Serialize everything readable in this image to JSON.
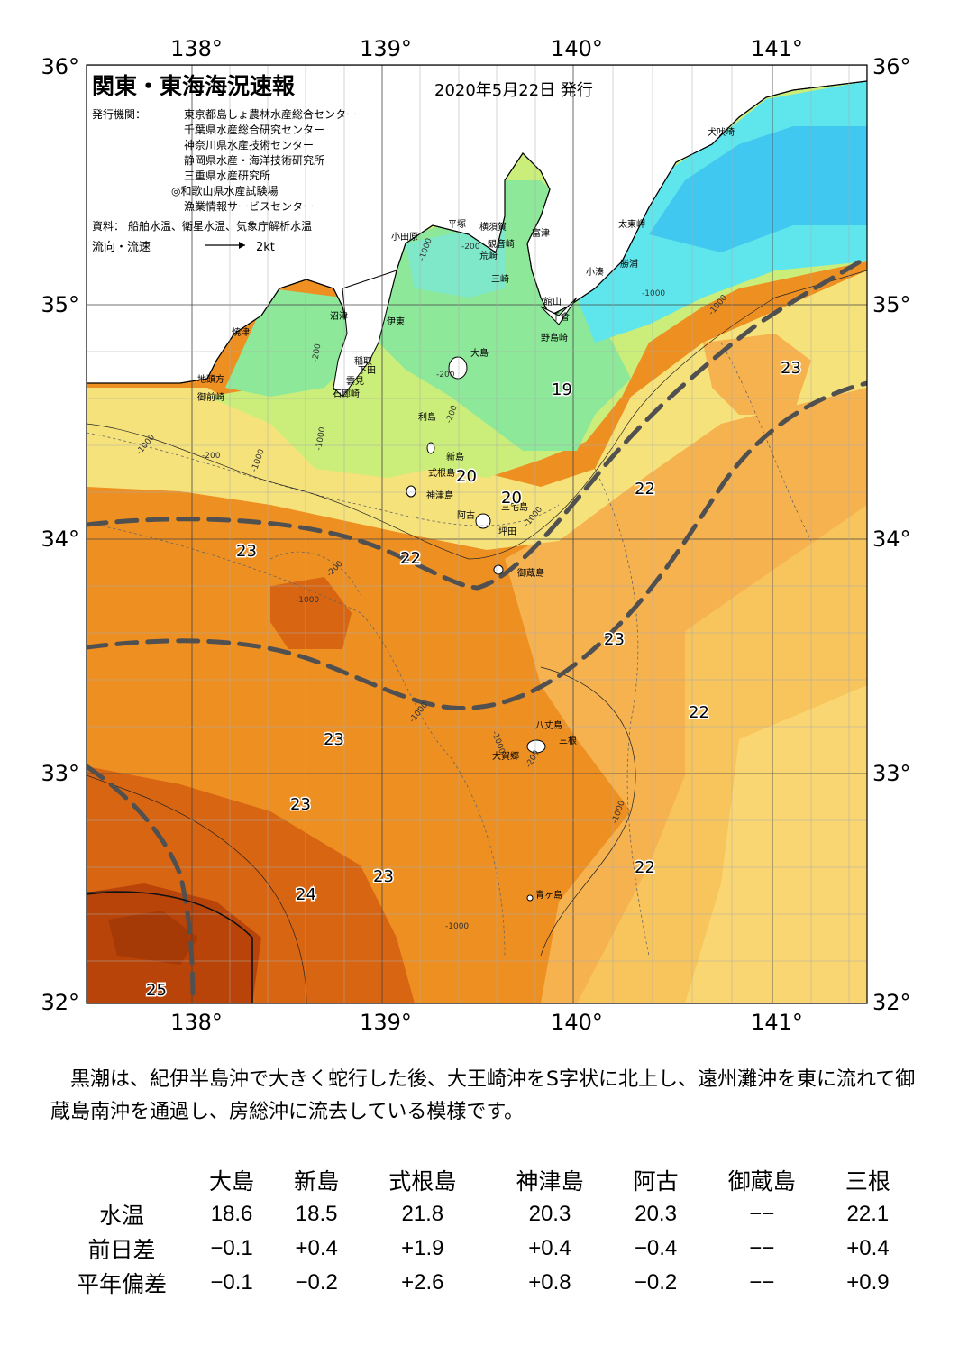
{
  "header": {
    "title": "関東・東海海況速報",
    "date": "2020年5月22日 発行",
    "publisher_label": "発行機関：",
    "publishers": [
      "東京都島しょ農林水産総合センター",
      "千葉県水産総合研究センター",
      "神奈川県水産技術センター",
      "静岡県水産・海洋技術研究所",
      "三重県水産研究所",
      "◎和歌山県水産試験場",
      "漁業情報サービスセンター"
    ],
    "source_label": "資料：",
    "source": "船舶水温、衛星水温、気象庁解析水温",
    "flow_label": "流向・流速",
    "flow_scale": "2kt"
  },
  "axes": {
    "lon_labels": [
      "138°",
      "139°",
      "140°",
      "141°"
    ],
    "lat_labels": [
      "36°",
      "35°",
      "34°",
      "33°",
      "32°"
    ]
  },
  "place_names": {
    "inubozaki": "犬吠埼",
    "taitomisaki": "太東岬",
    "katsuura": "勝浦",
    "kominato": "小湊",
    "tateyama": "館山",
    "chikura": "千倉",
    "nojimazaki": "野島崎",
    "futtsu": "富津",
    "yokosuka": "横須賀",
    "kannonzaki": "観音崎",
    "arasaki": "荒崎",
    "misaki": "三崎",
    "hiratsuka": "平塚",
    "odawara": "小田原",
    "ito": "伊東",
    "inatori": "稲取",
    "shimoda": "下田",
    "kumomi": "雲見",
    "irozaki": "石廊崎",
    "numazu": "沼津",
    "yaizu": "焼津",
    "jitogata": "地頭方",
    "omaezaki": "御前崎",
    "oshima": "大島",
    "toshima": "利島",
    "niijima": "新島",
    "shikinejima": "式根島",
    "kozushima": "神津島",
    "miyake": "三宅島",
    "ako": "阿古",
    "tsubota": "坪田",
    "mikurajima": "御蔵島",
    "hachijojima": "八丈島",
    "mitsune": "三根",
    "okago": "大賀郷",
    "aogashima": "青ヶ島"
  },
  "isotherm_labels": [
    "23",
    "19",
    "22",
    "20",
    "20",
    "23",
    "22",
    "23",
    "23",
    "22",
    "23",
    "23",
    "24",
    "23",
    "22",
    "25"
  ],
  "depth_labels": [
    "-200",
    "-1000"
  ],
  "summary": "黒潮は、紀伊半島沖で大きく蛇行した後、大王崎沖をS字状に北上し、遠州灘沖を東に流れて御蔵島南沖を通過し、房総沖に流去している模様です。",
  "table": {
    "columns": [
      "大島",
      "新島",
      "式根島",
      "神津島",
      "阿古",
      "御蔵島",
      "三根"
    ],
    "rows": [
      {
        "label": "水温",
        "values": [
          "18.6",
          "18.5",
          "21.8",
          "20.3",
          "20.3",
          "−−",
          "22.1"
        ]
      },
      {
        "label": "前日差",
        "values": [
          "−0.1",
          "+0.4",
          "+1.9",
          "+0.4",
          "−0.4",
          "−−",
          "+0.4"
        ]
      },
      {
        "label": "平年偏差",
        "values": [
          "−0.1",
          "−0.2",
          "+2.6",
          "+0.8",
          "−0.2",
          "−−",
          "+0.9"
        ]
      }
    ]
  },
  "colors": {
    "land": "#ffffff",
    "temp_18": "#5fe6ec",
    "temp_19": "#8ee89a",
    "temp_20": "#cbee7a",
    "temp_21": "#f6e27a",
    "temp_22": "#f6b24e",
    "temp_23": "#ee8f22",
    "temp_24": "#d86512",
    "temp_25": "#b8440a",
    "cold_north": "#40c8f0",
    "kuroshio_line": "#505050"
  }
}
